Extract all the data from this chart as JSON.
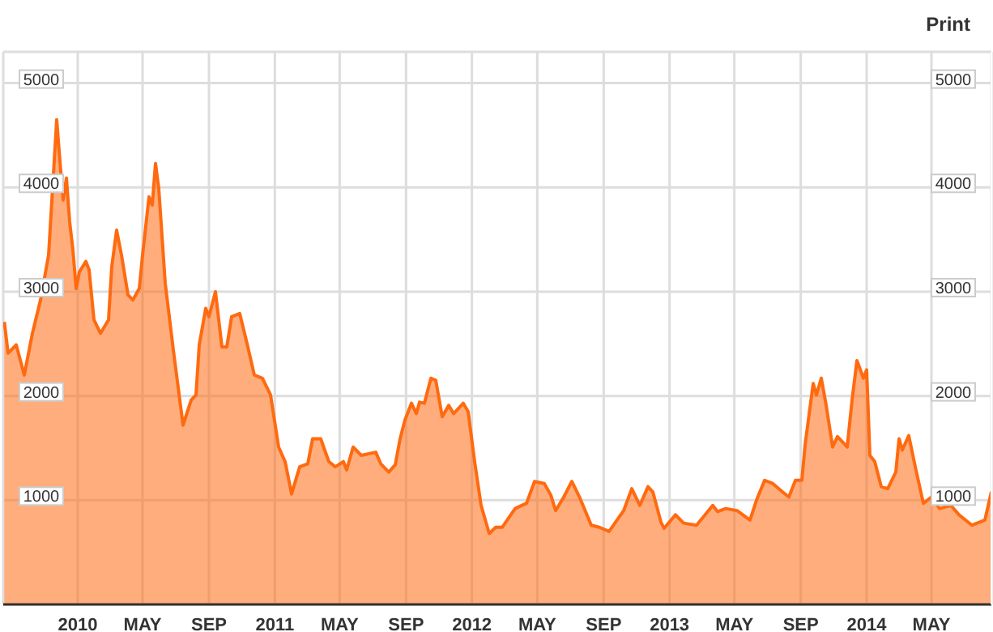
{
  "chart_data": {
    "type": "area",
    "color": "#ff6a10",
    "x": [
      "2009-08-18",
      "2009-08-25",
      "2009-09-09",
      "2009-09-24",
      "2009-10-09",
      "2009-10-24",
      "2009-11-08",
      "2009-11-17",
      "2009-11-23",
      "2009-11-29",
      "2009-12-05",
      "2009-12-11",
      "2009-12-17",
      "2009-12-23",
      "2009-12-29",
      "2010-01-04",
      "2010-01-16",
      "2010-01-22",
      "2010-01-31",
      "2010-02-12",
      "2010-02-27",
      "2010-03-05",
      "2010-03-14",
      "2010-03-23",
      "2010-04-04",
      "2010-04-13",
      "2010-04-25",
      "2010-05-01",
      "2010-05-13",
      "2010-05-19",
      "2010-05-25",
      "2010-05-31",
      "2010-06-12",
      "2010-06-27",
      "2010-07-15",
      "2010-07-30",
      "2010-08-08",
      "2010-08-14",
      "2010-08-26",
      "2010-09-01",
      "2010-09-13",
      "2010-09-25",
      "2010-10-04",
      "2010-10-13",
      "2010-10-28",
      "2010-11-12",
      "2010-11-24",
      "2010-12-09",
      "2010-12-24",
      "2011-01-08",
      "2011-01-20",
      "2011-02-01",
      "2011-02-16",
      "2011-03-03",
      "2011-03-12",
      "2011-03-27",
      "2011-04-02",
      "2011-04-11",
      "2011-04-23",
      "2011-05-08",
      "2011-05-14",
      "2011-05-26",
      "2011-06-10",
      "2011-07-07",
      "2011-07-16",
      "2011-07-31",
      "2011-08-12",
      "2011-08-21",
      "2011-08-30",
      "2011-09-11",
      "2011-09-20",
      "2011-09-26",
      "2011-10-05",
      "2011-10-17",
      "2011-10-26",
      "2011-11-07",
      "2011-11-19",
      "2011-11-28",
      "2011-12-16",
      "2011-12-25",
      "2012-01-06",
      "2012-01-18",
      "2012-02-02",
      "2012-02-14",
      "2012-02-26",
      "2012-03-21",
      "2012-04-11",
      "2012-04-26",
      "2012-05-14",
      "2012-05-26",
      "2012-06-04",
      "2012-06-19",
      "2012-07-04",
      "2012-07-19",
      "2012-08-09",
      "2012-08-24",
      "2012-09-11",
      "2012-09-23",
      "2012-10-08",
      "2012-10-23",
      "2012-11-07",
      "2012-11-22",
      "2012-12-01",
      "2012-12-16",
      "2012-12-22",
      "2013-01-12",
      "2013-01-27",
      "2013-02-20",
      "2013-03-22",
      "2013-03-31",
      "2013-04-15",
      "2013-05-06",
      "2013-05-30",
      "2013-06-11",
      "2013-06-26",
      "2013-07-11",
      "2013-07-29",
      "2013-08-10",
      "2013-08-22",
      "2013-09-03",
      "2013-09-09",
      "2013-09-24",
      "2013-09-30",
      "2013-10-09",
      "2013-10-18",
      "2013-10-30",
      "2013-11-08",
      "2013-11-26",
      "2013-12-05",
      "2013-12-14",
      "2013-12-26",
      "2014-01-01",
      "2014-01-07",
      "2014-01-16",
      "2014-01-28",
      "2014-02-09",
      "2014-02-24",
      "2014-03-02",
      "2014-03-08",
      "2014-03-20",
      "2014-04-01",
      "2014-04-16",
      "2014-05-01",
      "2014-05-16",
      "2014-06-06",
      "2014-06-21",
      "2014-07-15",
      "2014-08-08",
      "2014-08-20"
    ],
    "values": [
      2710,
      2410,
      2490,
      2200,
      2600,
      2920,
      3350,
      null,
      4650,
      4250,
      3880,
      4090,
      3670,
      3400,
      3030,
      3190,
      3290,
      3210,
      2730,
      2600,
      2730,
      3240,
      3590,
      3350,
      2970,
      2920,
      3030,
      3350,
      3910,
      3830,
      4230,
      3990,
      3080,
      2440,
      1720,
      1960,
      2010,
      2490,
      2840,
      2760,
      3000,
      2470,
      2470,
      2760,
      2790,
      2470,
      2200,
      2170,
      2010,
      1510,
      1370,
      1060,
      1320,
      1350,
      1590,
      1590,
      1500,
      1370,
      1320,
      1370,
      1290,
      1510,
      1430,
      1460,
      1350,
      1270,
      1340,
      1590,
      1770,
      1930,
      1830,
      1940,
      1930,
      2170,
      2150,
      1800,
      1910,
      1830,
      1930,
      1850,
      1370,
      950,
      680,
      740,
      740,
      920,
      970,
      1180,
      1160,
      1050,
      900,
      1030,
      1180,
      1020,
      760,
      740,
      700,
      790,
      900,
      1110,
      950,
      1130,
      1080,
      790,
      730,
      860,
      780,
      760,
      950,
      890,
      920,
      900,
      810,
      1000,
      1190,
      1160,
      1080,
      1030,
      1190,
      1190,
      1530,
      2120,
      2010,
      2170,
      1910,
      1510,
      1610,
      1510,
      1960,
      2340,
      2170,
      2250,
      1430,
      1370,
      1130,
      1110,
      1270,
      1590,
      1480,
      1620,
      1320,
      970,
      1030,
      920,
      950,
      860,
      760,
      810,
      1080
    ],
    "xlim": [
      "2009-08-16",
      "2014-08-20"
    ],
    "xticks": [
      {
        "value": "2010-01-01",
        "label": "2010"
      },
      {
        "value": "2010-05-01",
        "label": "MAY"
      },
      {
        "value": "2010-09-01",
        "label": "SEP"
      },
      {
        "value": "2011-01-01",
        "label": "2011"
      },
      {
        "value": "2011-05-01",
        "label": "MAY"
      },
      {
        "value": "2011-09-01",
        "label": "SEP"
      },
      {
        "value": "2012-01-01",
        "label": "2012"
      },
      {
        "value": "2012-05-01",
        "label": "MAY"
      },
      {
        "value": "2012-09-01",
        "label": "SEP"
      },
      {
        "value": "2013-01-01",
        "label": "2013"
      },
      {
        "value": "2013-05-01",
        "label": "MAY"
      },
      {
        "value": "2013-09-01",
        "label": "SEP"
      },
      {
        "value": "2014-01-01",
        "label": "2014"
      },
      {
        "value": "2014-05-01",
        "label": "MAY"
      }
    ],
    "ylim": [
      0,
      5300
    ],
    "yticks": [
      1000,
      2000,
      3000,
      4000,
      5000
    ],
    "y2lim": [
      0,
      5300
    ],
    "y2ticks": [
      1000,
      2000,
      3000,
      4000,
      5000
    ],
    "grid": true,
    "annotations": [
      "Print"
    ]
  }
}
